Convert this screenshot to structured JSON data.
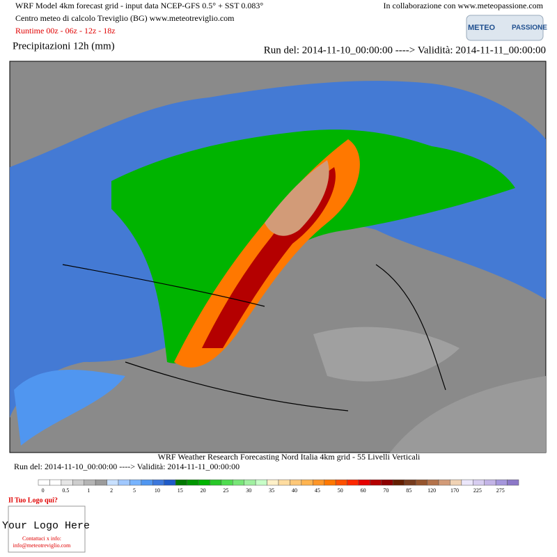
{
  "header": {
    "line1": "WRF Model 4km forecast grid - input data NCEP-GFS 0.5° + SST 0.083°",
    "line2": "Centro meteo di calcolo Treviglio (BG) www.meteotreviglio.com",
    "runtime": "Runtime 00z - 06z - 12z - 18z",
    "collab": "In collaborazione con www.meteopassione.com",
    "logo_left": "METEO",
    "logo_right": "PASSIONE",
    "variable": "Precipitazioni 12h (mm)",
    "run": "Run del: 2014-11-10_00:00:00 ----> Validità: 2014-11-11_00:00:00"
  },
  "footer": {
    "model": "WRF Weather Research Forecasting Nord Italia 4km grid - 55 Livelli Verticali",
    "run": "Run del: 2014-11-10_00:00:00 ----> Validità: 2014-11-11_00:00:00"
  },
  "legend": {
    "colors": [
      "#ffffff",
      "#ffffff",
      "#e6e6e6",
      "#cdcdcd",
      "#b4b4b4",
      "#9b9b9b",
      "#c8e0ff",
      "#a0c8ff",
      "#78b4ff",
      "#5096f0",
      "#3c78dc",
      "#1e5ac8",
      "#007800",
      "#009600",
      "#00b400",
      "#28c828",
      "#50dc50",
      "#78e678",
      "#a0f0a0",
      "#c8ffc8",
      "#fff0c8",
      "#ffdca0",
      "#ffc878",
      "#ffb450",
      "#ff9628",
      "#ff7800",
      "#ff5000",
      "#ff2800",
      "#e60000",
      "#b40000",
      "#8c0000",
      "#641e00",
      "#783c1e",
      "#96552d",
      "#b4734b",
      "#d29b78",
      "#f0d2b4",
      "#ebe6fa",
      "#d7cdf0",
      "#c3b4e6",
      "#a596dc",
      "#8c78c8"
    ],
    "labels": [
      "0",
      "0.5",
      "1",
      "2",
      "5",
      "10",
      "15",
      "20",
      "25",
      "30",
      "35",
      "40",
      "45",
      "50",
      "60",
      "70",
      "85",
      "120",
      "170",
      "225",
      "275"
    ]
  },
  "logo": {
    "title": "Il Tuo Logo qui?",
    "placeholder": "Your Logo Here",
    "contact": "Contattaci x info:",
    "email": "info@meteotreviglio.com"
  }
}
